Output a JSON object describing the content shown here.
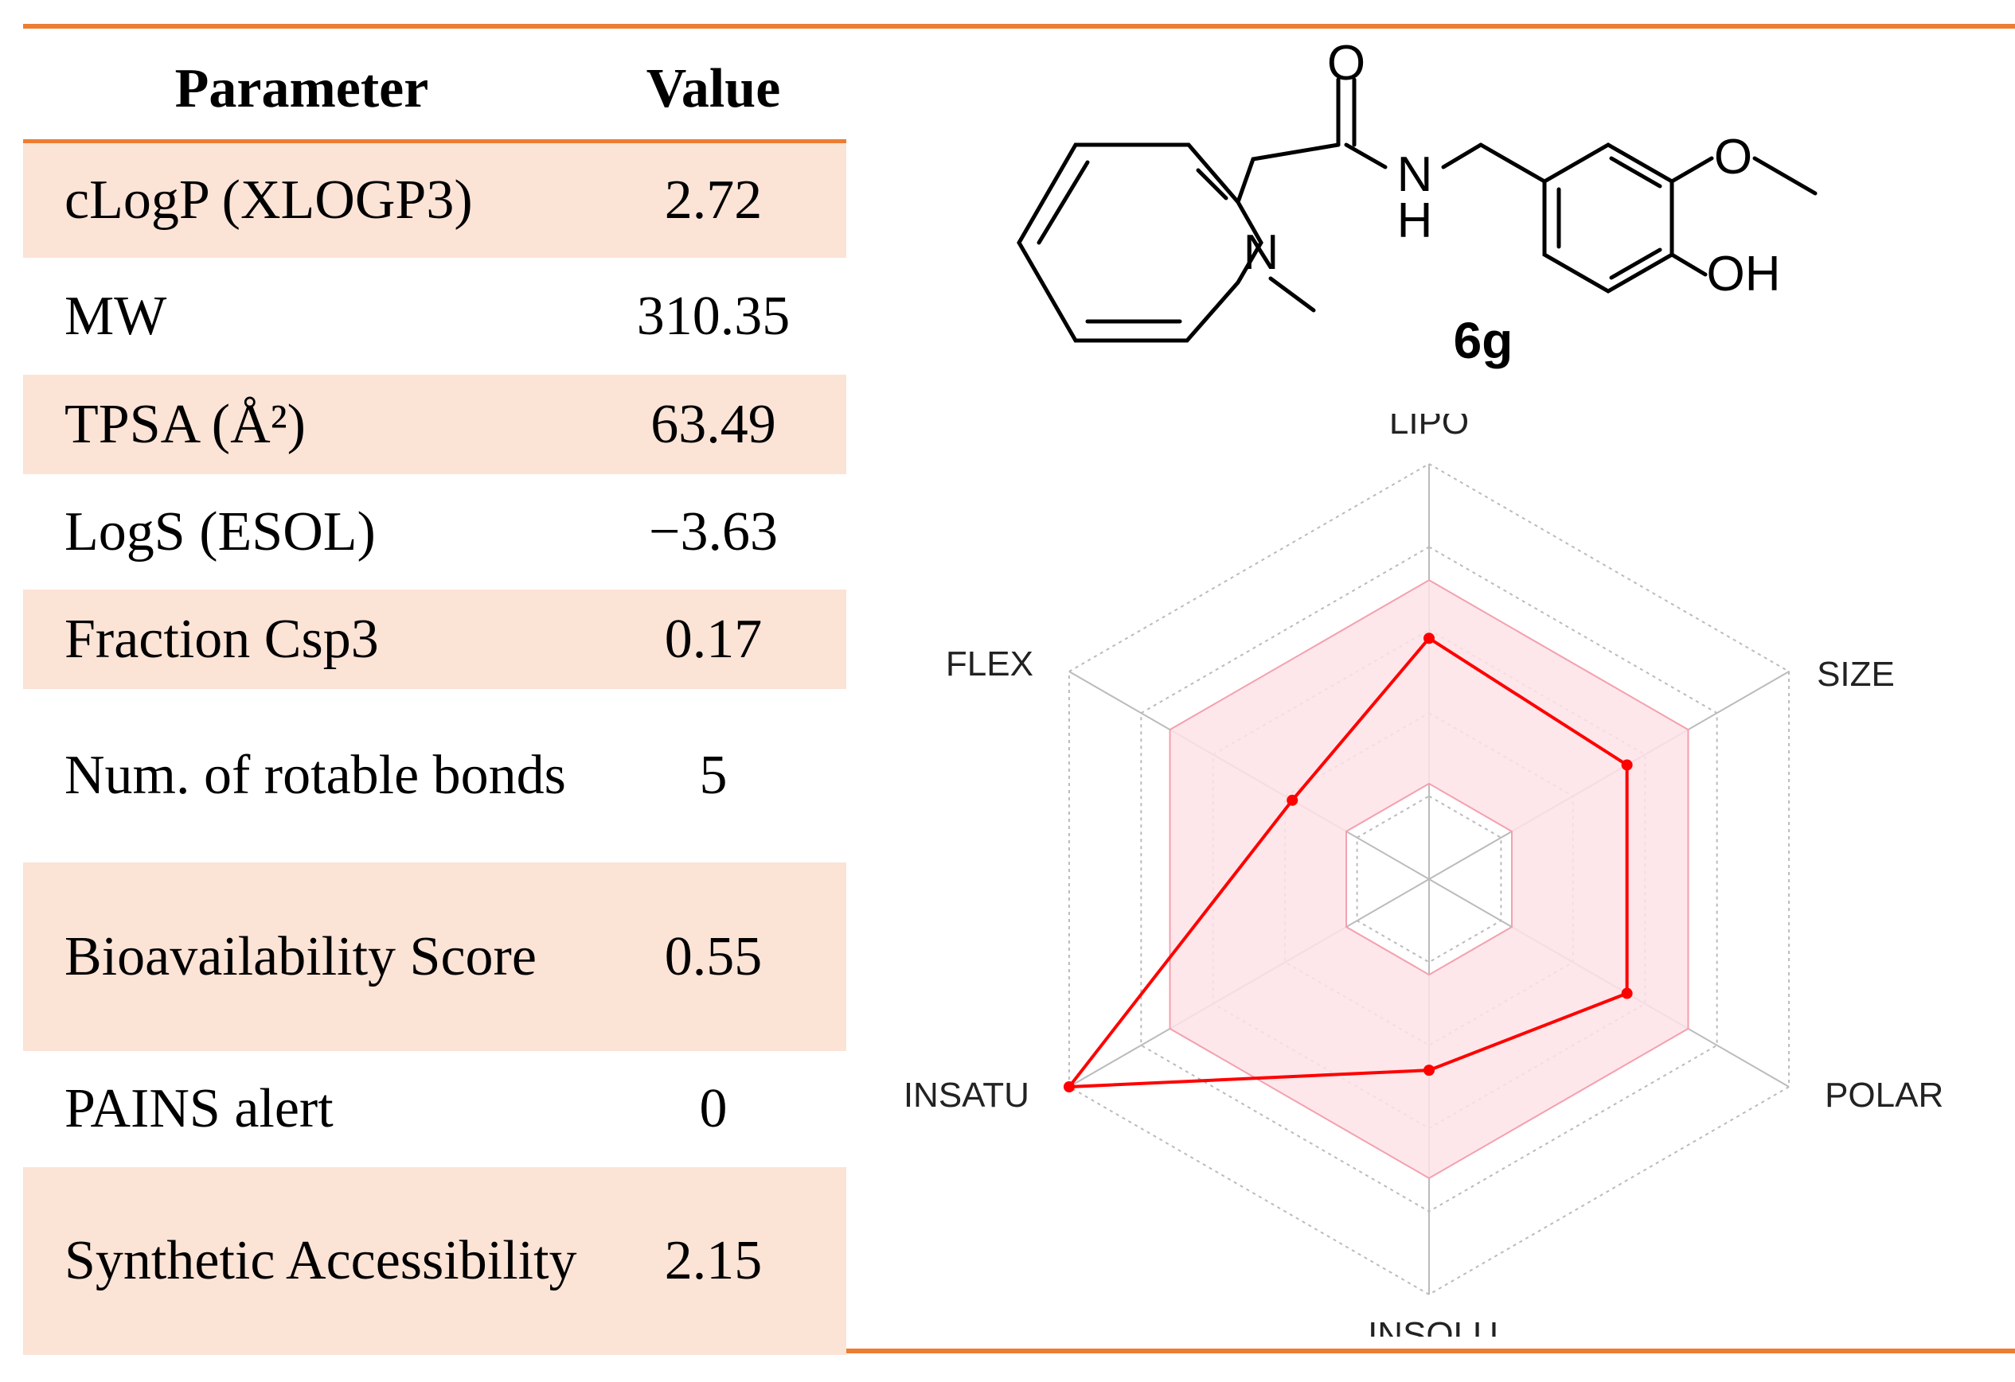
{
  "table": {
    "headers": {
      "parameter": "Parameter",
      "value": "Value"
    },
    "rows": [
      {
        "param": "cLogP (XLOGP3)",
        "value": "2.72"
      },
      {
        "param": "MW",
        "value": "310.35"
      },
      {
        "param": "TPSA (Å²)",
        "value": "63.49"
      },
      {
        "param": "LogS (ESOL)",
        "value": "−3.63"
      },
      {
        "param": "Fraction Csp3",
        "value": "0.17"
      },
      {
        "param": "Num. of rotable bonds",
        "value": "5"
      },
      {
        "param": "Bioavailability Score",
        "value": "0.55"
      },
      {
        "param": "PAINS alert",
        "value": "0"
      },
      {
        "param": "Synthetic Accessibility",
        "value": "2.15"
      }
    ]
  },
  "structure": {
    "compound_label": "6g",
    "atom_labels": {
      "o_carbonyl": "O",
      "n_amide": "N",
      "h_amide": "H",
      "n_indole": "N",
      "o_methoxy": "O",
      "oh": "OH"
    }
  },
  "chart_data": {
    "type": "radar",
    "axes": [
      "LIPO",
      "SIZE",
      "POLAR",
      "INSOLU",
      "INSATU",
      "FLEX"
    ],
    "series": [
      {
        "values": [
          0.58,
          0.55,
          0.55,
          0.46,
          1.0,
          0.38
        ]
      }
    ],
    "optimal_range": {
      "min": 0.23,
      "max": 0.72
    },
    "rings": 5,
    "colors": {
      "series": "#ff0000",
      "band_fill": "#fde3e8",
      "band_stroke": "#f4a0ae",
      "grid": "#bbbbbb"
    }
  }
}
